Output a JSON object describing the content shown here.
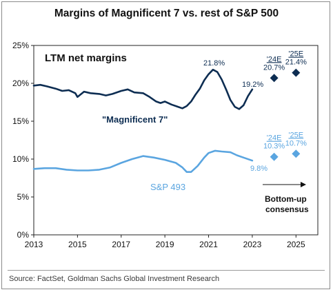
{
  "chart_data": {
    "type": "line",
    "title": "Margins of Magnificent 7 vs. rest of S&P 500",
    "subtitle": "LTM net margins",
    "xlim": [
      2013,
      2026
    ],
    "ylim": [
      0,
      25
    ],
    "x_ticks": [
      "2013",
      "2015",
      "2017",
      "2019",
      "2021",
      "2023",
      "2025"
    ],
    "y_ticks": [
      "0%",
      "5%",
      "10%",
      "15%",
      "20%",
      "25%"
    ],
    "grid": false,
    "series": [
      {
        "name": "\"Magnificent 7\"",
        "color": "#0d2d52",
        "x": [
          2013.0,
          2013.3,
          2013.6,
          2014.0,
          2014.3,
          2014.6,
          2014.9,
          2015.0,
          2015.3,
          2015.6,
          2016.0,
          2016.3,
          2016.6,
          2017.0,
          2017.3,
          2017.6,
          2018.0,
          2018.3,
          2018.6,
          2018.8,
          2019.0,
          2019.3,
          2019.6,
          2019.8,
          2020.0,
          2020.2,
          2020.4,
          2020.6,
          2020.8,
          2021.0,
          2021.2,
          2021.4,
          2021.6,
          2021.8,
          2022.0,
          2022.2,
          2022.4,
          2022.6,
          2022.8,
          2023.0
        ],
        "values": [
          19.7,
          19.8,
          19.6,
          19.3,
          19.0,
          19.1,
          18.7,
          18.2,
          18.9,
          18.7,
          18.6,
          18.4,
          18.6,
          19.0,
          19.2,
          18.8,
          18.7,
          18.2,
          17.6,
          17.4,
          17.6,
          17.2,
          16.9,
          16.7,
          17.0,
          17.6,
          18.5,
          19.3,
          20.4,
          21.2,
          21.8,
          21.5,
          20.5,
          19.2,
          17.8,
          16.9,
          16.6,
          17.1,
          18.3,
          19.2
        ]
      },
      {
        "name": "S&P 493",
        "color": "#5aa5e0",
        "x": [
          2013.0,
          2013.5,
          2014.0,
          2014.5,
          2015.0,
          2015.5,
          2016.0,
          2016.5,
          2017.0,
          2017.5,
          2018.0,
          2018.5,
          2019.0,
          2019.5,
          2019.8,
          2020.0,
          2020.2,
          2020.5,
          2020.8,
          2021.0,
          2021.3,
          2021.6,
          2022.0,
          2022.3,
          2022.6,
          2023.0
        ],
        "values": [
          8.7,
          8.8,
          8.8,
          8.6,
          8.5,
          8.5,
          8.6,
          8.9,
          9.5,
          10.0,
          10.4,
          10.2,
          9.9,
          9.5,
          8.9,
          8.3,
          8.3,
          9.1,
          10.2,
          10.8,
          11.1,
          11.0,
          10.9,
          10.5,
          10.2,
          9.8
        ]
      }
    ],
    "estimates": [
      {
        "series": "\"Magnificent 7\"",
        "label": "'24E",
        "x": 2024,
        "value": 20.7,
        "value_label": "20.7%",
        "color": "#0d2d52"
      },
      {
        "series": "\"Magnificent 7\"",
        "label": "'25E",
        "x": 2025,
        "value": 21.4,
        "value_label": "21.4%",
        "color": "#0d2d52"
      },
      {
        "series": "S&P 493",
        "label": "'24E",
        "x": 2024,
        "value": 10.3,
        "value_label": "10.3%",
        "color": "#5aa5e0"
      },
      {
        "series": "S&P 493",
        "label": "'25E",
        "x": 2025,
        "value": 10.7,
        "value_label": "10.7%",
        "color": "#5aa5e0"
      }
    ],
    "annotations": {
      "mag7_peak": "21.8%",
      "mag7_last": "19.2%",
      "sp493_last": "9.8%",
      "consensus_line1": "Bottom-up",
      "consensus_line2": "consensus"
    }
  },
  "source": "Source: FactSet, Goldman Sachs Global Investment Research"
}
